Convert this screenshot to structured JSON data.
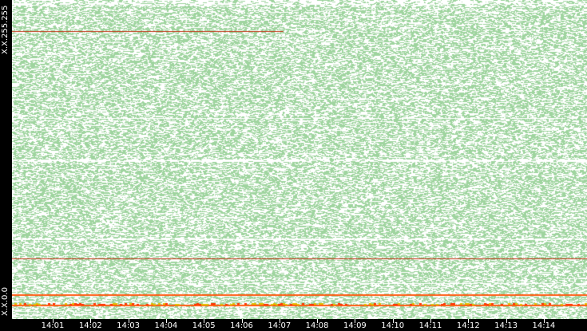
{
  "chart_data": {
    "type": "heatmap",
    "y_labels": {
      "top": "X.X.255.255",
      "bottom": "X.X.0.0"
    },
    "x_ticks": [
      "14:01",
      "14:02",
      "14:03",
      "14:04",
      "14:05",
      "14:06",
      "14:07",
      "14:08",
      "14:09",
      "14:10",
      "14:11",
      "14:12",
      "14:13",
      "14:14"
    ],
    "colors": {
      "background": "#ffffff",
      "density_low": "#9fd49f",
      "line_dark": "#c03010",
      "line_bright": "#ff5a10",
      "line_yellow": "#e0c000"
    },
    "horizontal_lines": [
      {
        "address_fraction": 0.903,
        "color": "#c03010",
        "time_end": "14:07"
      },
      {
        "address_fraction": 0.19,
        "color": "#c03010",
        "time_end": "14:14+"
      },
      {
        "address_fraction": 0.078,
        "color": "#ff5a10",
        "time_end": "14:14+"
      },
      {
        "address_fraction": 0.045,
        "color": "#ff5a10",
        "time_end": "14:14+"
      }
    ]
  }
}
